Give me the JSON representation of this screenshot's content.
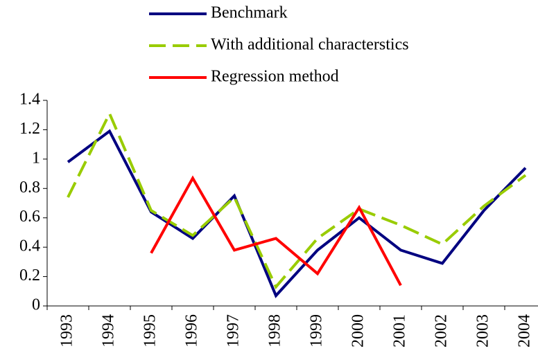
{
  "chart_data": {
    "type": "line",
    "categories": [
      "1993",
      "1994",
      "1995",
      "1996",
      "1997",
      "1998",
      "1999",
      "2000",
      "2001",
      "2002",
      "2003",
      "2004"
    ],
    "series": [
      {
        "name": "Benchmark",
        "color": "#000080",
        "dash": false,
        "values": [
          0.98,
          1.19,
          0.64,
          0.46,
          0.75,
          0.07,
          0.38,
          0.6,
          0.38,
          0.29,
          0.65,
          0.94
        ]
      },
      {
        "name": "With additional characterstics",
        "color": "#99cc00",
        "dash": true,
        "values": [
          0.74,
          1.31,
          0.65,
          0.48,
          0.74,
          0.13,
          0.46,
          0.66,
          0.55,
          0.42,
          0.68,
          0.89
        ]
      },
      {
        "name": "Regression method",
        "color": "#ff0000",
        "dash": false,
        "values": [
          null,
          null,
          0.36,
          0.87,
          0.38,
          0.46,
          0.22,
          0.67,
          0.14,
          null,
          null,
          null
        ]
      }
    ],
    "ylim": [
      0,
      1.4
    ],
    "yticks": [
      0,
      0.2,
      0.4,
      0.6,
      0.8,
      1,
      1.2,
      1.4
    ]
  }
}
